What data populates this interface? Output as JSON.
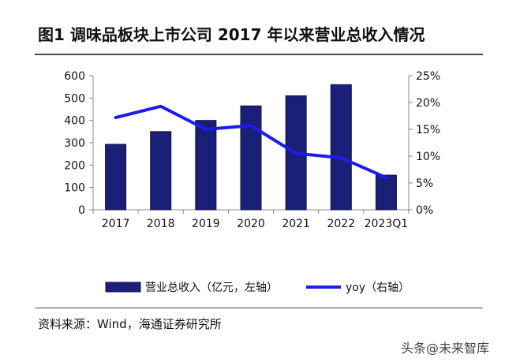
{
  "figure": {
    "title": "图1  调味品板块上市公司 2017 年以来营业总收入情况",
    "source": "资料来源：Wind，海通证券研究所",
    "watermark": "头条@未来智库"
  },
  "chart_data": {
    "type": "bar",
    "categories": [
      "2017",
      "2018",
      "2019",
      "2020",
      "2021",
      "2022",
      "2023Q1"
    ],
    "series": [
      {
        "name": "营业总收入（亿元，左轴）",
        "type": "bar",
        "axis": "left",
        "values": [
          293,
          350,
          400,
          465,
          510,
          560,
          155
        ]
      },
      {
        "name": "yoy（右轴）",
        "type": "line",
        "axis": "right",
        "values": [
          17.2,
          19.3,
          15.0,
          15.7,
          10.5,
          9.7,
          6.0
        ]
      }
    ],
    "y_left": {
      "min": 0,
      "max": 600,
      "ticks": [
        "0",
        "100",
        "200",
        "300",
        "400",
        "500",
        "600"
      ]
    },
    "y_right": {
      "min": 0,
      "max": 25,
      "ticks": [
        "0%",
        "5%",
        "10%",
        "15%",
        "20%",
        "25%"
      ]
    },
    "colors": {
      "bar": "#1a1f78",
      "bar_edge": "#0d104a",
      "line": "#1c1cf0"
    },
    "legend_position": "bottom",
    "grid": false
  }
}
